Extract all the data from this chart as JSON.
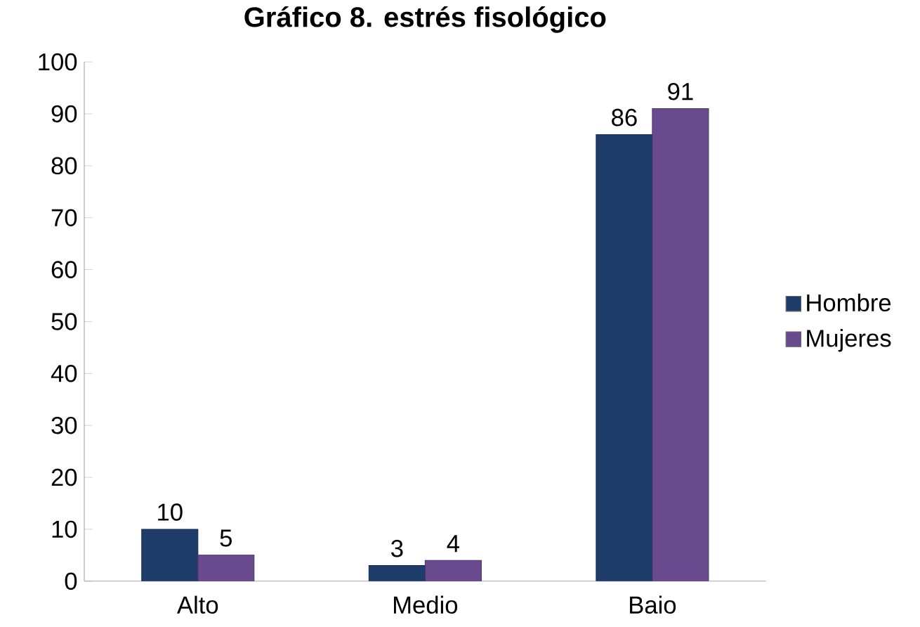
{
  "chart_data": {
    "type": "bar",
    "title": "Gráfico 8. estrés fisológico",
    "categories": [
      "Alto",
      "Medio",
      "Baio"
    ],
    "series": [
      {
        "name": "Hombre",
        "color": "#1f3d6b",
        "values": [
          10,
          3,
          86
        ]
      },
      {
        "name": "Mujeres",
        "color": "#6a4a8e",
        "values": [
          5,
          4,
          91
        ]
      }
    ],
    "ylim": [
      0,
      100
    ],
    "yticks": [
      0,
      10,
      20,
      30,
      40,
      50,
      60,
      70,
      80,
      90,
      100
    ],
    "data_labels": true,
    "grid": false,
    "legend": "right"
  }
}
